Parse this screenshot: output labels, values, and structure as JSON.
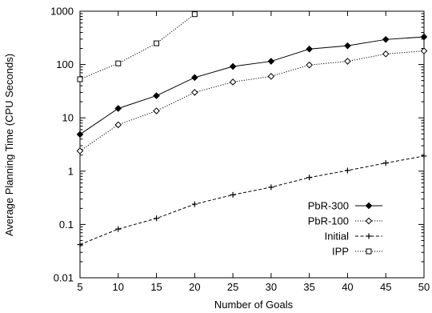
{
  "chart_data": {
    "type": "line",
    "title": "",
    "xlabel": "Number of Goals",
    "ylabel": "Average Planning Time (CPU Seconds)",
    "x_ticks": [
      "5",
      "10",
      "15",
      "20",
      "25",
      "30",
      "35",
      "40",
      "45",
      "50"
    ],
    "y_ticks": [
      "0.01",
      "0.1",
      "1",
      "10",
      "100",
      "1000"
    ],
    "x_range": [
      5,
      50
    ],
    "y_range": [
      0.01,
      1000
    ],
    "y_scale": "log",
    "grid": false,
    "legend_position": "bottom-right",
    "series": [
      {
        "name": "PbR-300",
        "line_style": "solid",
        "marker": "diamond",
        "marker_fill": "#000000",
        "points": [
          [
            5,
            4.9
          ],
          [
            10,
            15
          ],
          [
            15,
            26
          ],
          [
            20,
            57
          ],
          [
            25,
            92
          ],
          [
            30,
            115
          ],
          [
            35,
            195
          ],
          [
            40,
            225
          ],
          [
            45,
            295
          ],
          [
            50,
            330
          ]
        ]
      },
      {
        "name": "PbR-100",
        "line_style": "dotted",
        "marker": "diamond",
        "marker_fill": "#ffffff",
        "points": [
          [
            5,
            2.4
          ],
          [
            10,
            7.4
          ],
          [
            15,
            13.5
          ],
          [
            20,
            30
          ],
          [
            25,
            47
          ],
          [
            30,
            60
          ],
          [
            35,
            98
          ],
          [
            40,
            115
          ],
          [
            45,
            158
          ],
          [
            50,
            180
          ]
        ]
      },
      {
        "name": "Initial",
        "line_style": "dashed",
        "marker": "plus",
        "marker_fill": "#000000",
        "points": [
          [
            5,
            0.042
          ],
          [
            10,
            0.082
          ],
          [
            15,
            0.13
          ],
          [
            20,
            0.24
          ],
          [
            25,
            0.36
          ],
          [
            30,
            0.5
          ],
          [
            35,
            0.76
          ],
          [
            40,
            1.03
          ],
          [
            45,
            1.42
          ],
          [
            50,
            1.92
          ]
        ]
      },
      {
        "name": "IPP",
        "line_style": "dotted",
        "marker": "square",
        "marker_fill": "#ffffff",
        "points": [
          [
            5,
            53
          ],
          [
            10,
            105
          ],
          [
            15,
            250
          ],
          [
            20,
            880
          ]
        ]
      }
    ]
  }
}
